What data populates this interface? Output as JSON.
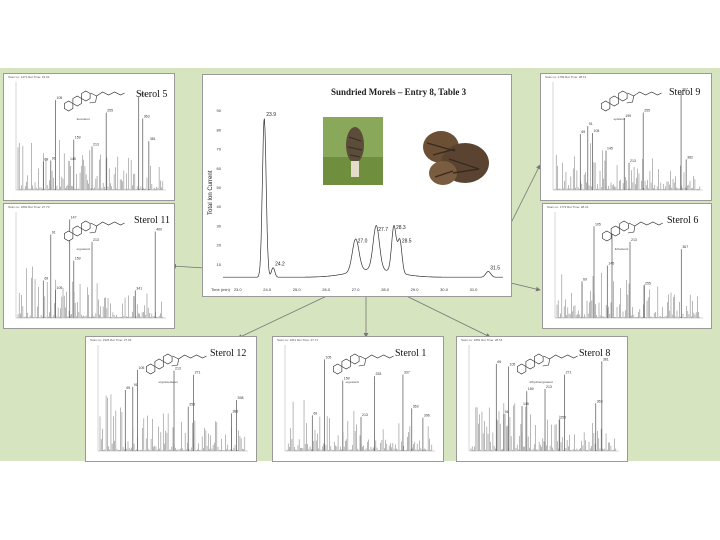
{
  "main_chart": {
    "title": "Sundried Morels – Entry 8, Table 3",
    "ylabel": "Total Ion Current",
    "xlabel": "Time (min)",
    "type": "line",
    "y_ticks": [
      "90",
      "80",
      "70",
      "60",
      "50",
      "40",
      "30",
      "20",
      "10"
    ],
    "x_ticks": [
      "23.0",
      "24.0",
      "25.0",
      "26.0",
      "27.0",
      "28.0",
      "29.0",
      "30.0",
      "31.0"
    ],
    "peak_labels": [
      "23.9",
      "24.2",
      "27.0",
      "27.7",
      "28.3",
      "28.5",
      "31.5"
    ],
    "photos": [
      "morel-mushroom-fresh",
      "morel-mushroom-dried"
    ]
  },
  "chart_data": [
    {
      "type": "line",
      "title": "Sundried Morels – Entry 8, Table 3",
      "xlabel": "Time (min)",
      "ylabel": "Total Ion Current",
      "xlim": [
        22.5,
        32.0
      ],
      "ylim": [
        0,
        100
      ],
      "peaks": [
        {
          "x": 23.9,
          "y": 86,
          "label": "23.9"
        },
        {
          "x": 24.2,
          "y": 8,
          "label": "24.2"
        },
        {
          "x": 27.0,
          "y": 20,
          "label": "27.0"
        },
        {
          "x": 27.7,
          "y": 26,
          "label": "27.7"
        },
        {
          "x": 28.3,
          "y": 27,
          "label": "28.3"
        },
        {
          "x": 28.5,
          "y": 20,
          "label": "28.5"
        },
        {
          "x": 31.5,
          "y": 6,
          "label": "31.5"
        }
      ]
    },
    {
      "type": "bar",
      "title": "Sterol 5",
      "peak_labels": [
        "381",
        "351",
        "255",
        "363",
        "213",
        "159",
        "145",
        "105",
        "91",
        "69"
      ]
    },
    {
      "type": "bar",
      "title": "Sterol 9",
      "peak_labels": [
        "382",
        "367",
        "255",
        "213",
        "199",
        "145",
        "105",
        "91",
        "69"
      ]
    },
    {
      "type": "bar",
      "title": "Sterol 11",
      "peak_labels": [
        "400",
        "341",
        "213",
        "159",
        "147",
        "105",
        "91",
        "69"
      ]
    },
    {
      "type": "bar",
      "title": "Sterol 6",
      "peak_labels": [
        "367",
        "255",
        "213",
        "159",
        "145",
        "105",
        "69"
      ]
    },
    {
      "type": "bar",
      "title": "Sterol 12",
      "peak_labels": [
        "398",
        "383",
        "271",
        "255",
        "213",
        "105",
        "91",
        "69"
      ]
    },
    {
      "type": "bar",
      "title": "Sterol 1",
      "peak_labels": [
        "396",
        "363",
        "337",
        "253",
        "213",
        "159",
        "105",
        "69"
      ]
    },
    {
      "type": "bar",
      "title": "Sterol 8",
      "peak_labels": [
        "381",
        "363",
        "271",
        "255",
        "213",
        "159",
        "145",
        "105",
        "91",
        "69"
      ]
    }
  ],
  "panels": [
    {
      "title": "Sterol 5",
      "header": "Scan no: 1471   Ret Time: 23.91",
      "struct": "fecosterol"
    },
    {
      "title": "Sterol 9",
      "header": "Scan no: 1799   Ret Time: 28.11",
      "struct": "episterol"
    },
    {
      "title": "Sterol 11",
      "header": "Scan no: 1892   Ret Time: 27.70",
      "struct": "ergosterol"
    },
    {
      "title": "Sterol 6",
      "header": "Scan no: 1773   Ret Time: 28.31",
      "struct": "lichesterol"
    },
    {
      "title": "Sterol 12",
      "header": "Scan no: 1926   Ret Time: 27.04",
      "struct": "ergosta-dienol"
    },
    {
      "title": "Sterol 1",
      "header": "Scan no: 1811   Ret Time: 27.71",
      "struct": "ergosterol"
    },
    {
      "title": "Sterol 8",
      "header": "Scan no: 1881   Ret Time: 28.51",
      "struct": "dihydroergosterol"
    }
  ],
  "colors": {
    "stage": "#d6e4c0",
    "spectrum": "#8a8a8a",
    "trace": "#333333",
    "arrow": "#777777"
  }
}
